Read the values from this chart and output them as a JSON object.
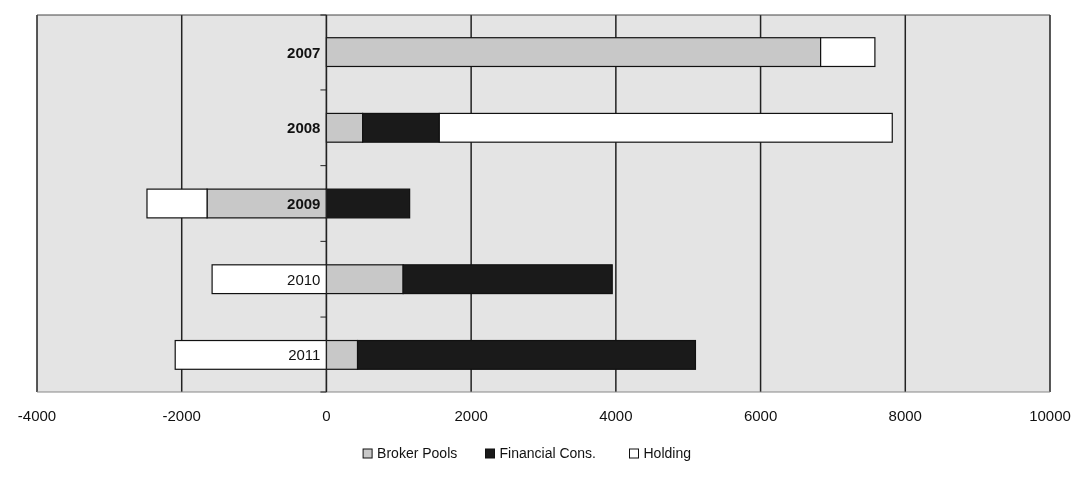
{
  "chart_data": {
    "type": "bar",
    "orientation": "horizontal",
    "stacked": true,
    "categories": [
      "2007",
      "2008",
      "2009",
      "2010",
      "2011"
    ],
    "series": [
      {
        "name": "Broker Pools",
        "color": "#c8c8c8",
        "values": [
          6830,
          500,
          -1650,
          1060,
          430
        ]
      },
      {
        "name": "Financial Cons.",
        "color": "#1a1a1a",
        "values": [
          0,
          1060,
          1150,
          2890,
          4670
        ]
      },
      {
        "name": "Holding",
        "color": "#ffffff",
        "values": [
          750,
          6260,
          -830,
          -1580,
          -2090
        ]
      }
    ],
    "xlim": [
      -4000,
      10000
    ],
    "xticks": [
      -4000,
      -2000,
      0,
      2000,
      4000,
      6000,
      8000,
      10000
    ],
    "grid": "x",
    "legend": "bottom"
  }
}
